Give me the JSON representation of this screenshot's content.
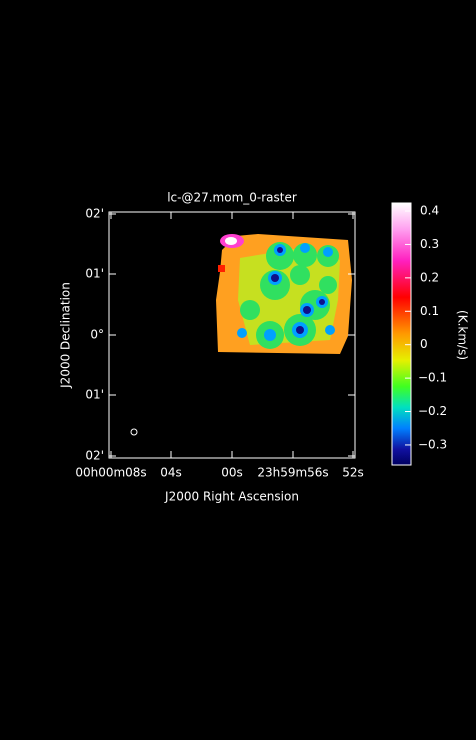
{
  "plot": {
    "title": "lc-@27.mom_0-raster",
    "x_label": "J2000 Right Ascension",
    "y_label": "J2000 Declination",
    "x_ticks": [
      "00h00m08s",
      "04s",
      "00s",
      "23h59m56s",
      "52s"
    ],
    "y_ticks": [
      "02'",
      "01'",
      "0°",
      "01'",
      "02'"
    ]
  },
  "colorbar": {
    "label": "(K.km/s)",
    "range": [
      -0.36,
      0.424
    ],
    "ticks": [
      0.4,
      0.3,
      0.2,
      0.1,
      0,
      {
        "value": -0.1,
        "label": "−0.1"
      },
      {
        "value": -0.2,
        "label": "−0.2"
      },
      {
        "value": -0.3,
        "label": "−0.3"
      }
    ]
  }
}
